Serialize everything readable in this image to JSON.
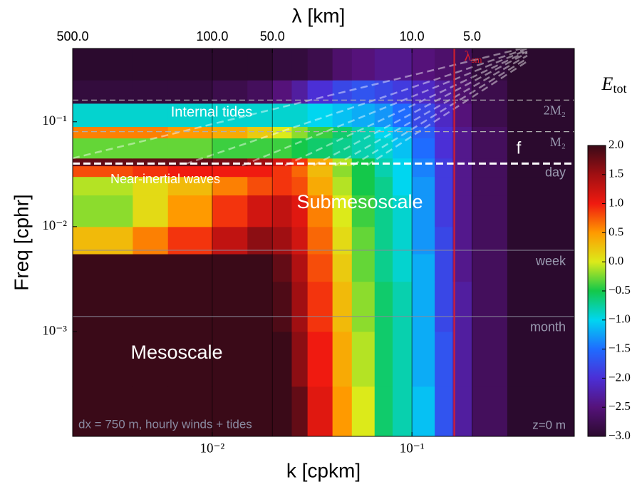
{
  "chart_data": {
    "type": "heatmap",
    "title": "λ [km]",
    "x_label": "k [cpkm]",
    "y_label": "Freq [cphr]",
    "log_x": true,
    "log_y": true,
    "xlim": [
      0.002,
      0.65
    ],
    "ylim": [
      0.0001,
      0.5
    ],
    "xticks": [
      {
        "value": 0.01,
        "label": "10⁻²"
      },
      {
        "value": 0.1,
        "label": "10⁻¹"
      }
    ],
    "yticks": [
      {
        "value": 0.1,
        "label": "10⁻¹"
      },
      {
        "value": 0.01,
        "label": "10⁻²"
      },
      {
        "value": 0.001,
        "label": "10⁻³"
      }
    ],
    "x2ticks": [
      {
        "value": 500,
        "label": "500.0"
      },
      {
        "value": 100,
        "label": "100.0"
      },
      {
        "value": 50,
        "label": "50.0"
      },
      {
        "value": 10,
        "label": "10.0"
      },
      {
        "value": 5,
        "label": "5.0"
      }
    ],
    "x_edges": [
      0.002,
      0.004,
      0.006,
      0.01,
      0.015,
      0.02,
      0.025,
      0.03,
      0.04,
      0.05,
      0.065,
      0.08,
      0.1,
      0.13,
      0.16,
      0.2,
      0.3,
      0.65
    ],
    "y_edges": [
      0.0001,
      0.0003,
      0.001,
      0.003,
      0.0055,
      0.01,
      0.02,
      0.03,
      0.038,
      0.045,
      0.07,
      0.09,
      0.15,
      0.25,
      0.5
    ],
    "values": [
      [
        2.0,
        2.0,
        2.0,
        2.0,
        2.0,
        2.0,
        1.8,
        1.1,
        0.5,
        0.0,
        -0.6,
        -0.8,
        -1.1,
        -1.7,
        -2.3,
        -2.7,
        -3.0
      ],
      [
        2.0,
        2.0,
        2.0,
        2.0,
        2.0,
        2.0,
        1.6,
        1.0,
        0.4,
        -0.1,
        -0.6,
        -0.8,
        -1.2,
        -1.7,
        -2.3,
        -2.7,
        -3.0
      ],
      [
        2.0,
        2.0,
        2.0,
        2.0,
        2.0,
        1.9,
        1.5,
        0.9,
        0.3,
        -0.2,
        -0.6,
        -0.8,
        -1.2,
        -1.8,
        -2.3,
        -2.7,
        -3.0
      ],
      [
        2.0,
        2.0,
        2.0,
        2.0,
        2.0,
        1.8,
        1.4,
        0.8,
        0.2,
        -0.3,
        -0.7,
        -0.9,
        -1.2,
        -1.8,
        -2.4,
        -2.7,
        -3.0
      ],
      [
        0.3,
        0.6,
        0.9,
        1.3,
        1.6,
        1.5,
        1.2,
        0.7,
        0.1,
        -0.3,
        -0.7,
        -0.9,
        -1.3,
        -1.8,
        -2.4,
        -2.7,
        -3.0
      ],
      [
        -0.2,
        0.1,
        0.5,
        0.9,
        1.2,
        1.3,
        1.1,
        0.6,
        0.0,
        -0.4,
        -0.7,
        -0.9,
        -1.3,
        -1.9,
        -2.4,
        -2.7,
        -3.0
      ],
      [
        -0.1,
        0.1,
        0.3,
        0.6,
        0.8,
        0.9,
        0.8,
        0.4,
        -0.1,
        -0.5,
        -0.7,
        -1.0,
        -1.3,
        -1.9,
        -2.4,
        -2.7,
        -3.0
      ],
      [
        0.8,
        0.9,
        1.0,
        1.0,
        1.0,
        0.9,
        0.7,
        0.3,
        -0.2,
        -0.5,
        -0.8,
        -1.0,
        -1.4,
        -1.9,
        -2.4,
        -2.7,
        -3.0
      ],
      [
        1.8,
        1.8,
        1.8,
        1.7,
        1.5,
        1.2,
        0.9,
        0.4,
        -0.1,
        -0.5,
        -0.8,
        -1.0,
        -1.4,
        -1.9,
        -2.4,
        -2.7,
        -3.0
      ],
      [
        -0.3,
        -0.3,
        -0.3,
        -0.4,
        -0.4,
        -0.4,
        -0.5,
        -0.6,
        -0.7,
        -0.8,
        -0.9,
        -1.1,
        -1.5,
        -2.0,
        -2.4,
        -2.7,
        -3.0
      ],
      [
        0.6,
        0.6,
        0.5,
        0.4,
        0.2,
        0.0,
        -0.2,
        -0.4,
        -0.6,
        -0.8,
        -1.0,
        -1.2,
        -1.6,
        -2.0,
        -2.4,
        -2.7,
        -3.0
      ],
      [
        -0.9,
        -0.9,
        -0.9,
        -0.9,
        -0.9,
        -0.9,
        -0.9,
        -1.0,
        -1.1,
        -1.2,
        -1.3,
        -1.5,
        -1.8,
        -2.1,
        -2.5,
        -2.8,
        -3.0
      ],
      [
        -2.9,
        -2.9,
        -2.9,
        -2.8,
        -2.7,
        -2.5,
        -2.3,
        -2.0,
        -1.8,
        -1.7,
        -1.8,
        -1.9,
        -2.1,
        -2.3,
        -2.6,
        -2.8,
        -3.0
      ],
      [
        -3.0,
        -3.0,
        -3.0,
        -3.0,
        -3.0,
        -2.9,
        -2.9,
        -2.8,
        -2.6,
        -2.5,
        -2.4,
        -2.4,
        -2.5,
        -2.6,
        -2.7,
        -2.9,
        -3.0
      ]
    ],
    "colormap": [
      "#2b0a2e",
      "#55127a",
      "#4b2fd6",
      "#1f6cff",
      "#00d6f0",
      "#14c84a",
      "#dcea1a",
      "#ff9a00",
      "#f01a10",
      "#a00f12",
      "#3a0a18"
    ],
    "clim": [
      -3.0,
      2.0
    ],
    "cticks": [
      {
        "value": 2.0,
        "label": "2.0"
      },
      {
        "value": 1.5,
        "label": "1.5"
      },
      {
        "value": 1.0,
        "label": "1.0"
      },
      {
        "value": 0.5,
        "label": "0.5"
      },
      {
        "value": 0.0,
        "label": "0.0"
      },
      {
        "value": -0.5,
        "label": "−0.5"
      },
      {
        "value": -1.0,
        "label": "−1.0"
      },
      {
        "value": -1.5,
        "label": "−1.5"
      },
      {
        "value": -2.0,
        "label": "−2.0"
      },
      {
        "value": -2.5,
        "label": "−2.5"
      },
      {
        "value": -3.0,
        "label": "−3.0"
      }
    ],
    "colorbar_label": {
      "symbol": "E",
      "subscript": "tot"
    },
    "hlines": [
      {
        "value": 0.161,
        "label": "2M₂",
        "style": "dashed",
        "label_above": false
      },
      {
        "value": 0.0805,
        "label": "M₂",
        "style": "dashed",
        "label_above": false
      },
      {
        "value": 0.04,
        "label": "f",
        "style": "bold-dashed",
        "label_above": true
      },
      {
        "value": 0.0417,
        "label": "day",
        "style": "none",
        "label_above": false
      },
      {
        "value": 0.00595,
        "label": "week",
        "style": "solid",
        "label_above": false
      },
      {
        "value": 0.00139,
        "label": "month",
        "style": "solid",
        "label_above": false
      }
    ],
    "vline": {
      "value": 0.163,
      "label": "λ",
      "subscript": "sm",
      "color": "#e0202a"
    },
    "annotations": [
      "Internal tides",
      "Near-inertial waves",
      "Submesoscale",
      "Mesoscale",
      "dx = 750 m, hourly winds + tides",
      "z=0 m"
    ]
  }
}
